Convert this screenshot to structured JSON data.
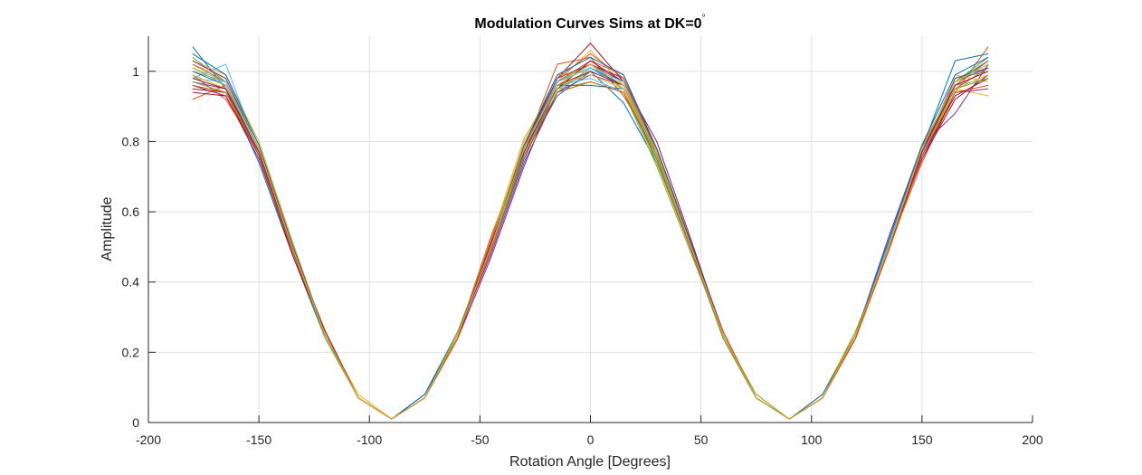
{
  "chart_data": {
    "type": "line",
    "title": "Modulation Curves Sims at DK=0",
    "title_superscript": "°",
    "xlabel": "Rotation Angle [Degrees]",
    "ylabel": "Amplitude",
    "xlim": [
      -200,
      200
    ],
    "ylim": [
      0,
      1.1
    ],
    "xticks": [
      -200,
      -150,
      -100,
      -50,
      0,
      50,
      100,
      150,
      200
    ],
    "yticks": [
      0,
      0.2,
      0.4,
      0.6,
      0.8,
      1
    ],
    "xtick_labels": [
      "-200",
      "-150",
      "-100",
      "-50",
      "0",
      "50",
      "100",
      "150",
      "200"
    ],
    "ytick_labels": [
      "0",
      "0.2",
      "0.4",
      "0.6",
      "0.8",
      "1"
    ],
    "grid": true,
    "x": [
      -180,
      -165,
      -150,
      -135,
      -120,
      -105,
      -90,
      -75,
      -60,
      -45,
      -30,
      -15,
      0,
      15,
      30,
      45,
      60,
      75,
      90,
      105,
      120,
      135,
      150,
      165,
      180
    ],
    "series": [
      {
        "color": "#0072BD",
        "values": [
          1.07,
          0.95,
          0.74,
          0.48,
          0.24,
          0.07,
          0.01,
          0.08,
          0.26,
          0.49,
          0.76,
          0.93,
          1.0,
          0.91,
          0.74,
          0.51,
          0.24,
          0.07,
          0.01,
          0.07,
          0.24,
          0.51,
          0.78,
          1.03,
          1.05
        ]
      },
      {
        "color": "#D95319",
        "values": [
          0.92,
          0.96,
          0.76,
          0.5,
          0.26,
          0.07,
          0.01,
          0.07,
          0.25,
          0.53,
          0.78,
          1.02,
          1.04,
          0.93,
          0.77,
          0.51,
          0.25,
          0.07,
          0.01,
          0.07,
          0.25,
          0.5,
          0.74,
          0.94,
          1.07
        ]
      },
      {
        "color": "#EDB120",
        "values": [
          1.03,
          0.99,
          0.8,
          0.52,
          0.25,
          0.08,
          0.01,
          0.07,
          0.25,
          0.52,
          0.81,
          0.97,
          1.06,
          0.96,
          0.75,
          0.5,
          0.24,
          0.07,
          0.01,
          0.08,
          0.26,
          0.49,
          0.76,
          0.95,
          0.93
        ]
      },
      {
        "color": "#7E2F8E",
        "values": [
          0.96,
          0.93,
          0.75,
          0.49,
          0.25,
          0.07,
          0.01,
          0.07,
          0.24,
          0.47,
          0.73,
          0.96,
          1.02,
          0.98,
          0.78,
          0.52,
          0.26,
          0.07,
          0.01,
          0.07,
          0.25,
          0.53,
          0.79,
          0.88,
          1.02
        ]
      },
      {
        "color": "#77AC30",
        "values": [
          1.0,
          0.97,
          0.78,
          0.5,
          0.25,
          0.07,
          0.01,
          0.07,
          0.26,
          0.5,
          0.77,
          0.95,
          0.97,
          0.94,
          0.73,
          0.49,
          0.25,
          0.08,
          0.01,
          0.07,
          0.25,
          0.51,
          0.77,
          0.98,
          1.0
        ]
      },
      {
        "color": "#4DBEEE",
        "values": [
          0.98,
          1.02,
          0.77,
          0.51,
          0.24,
          0.07,
          0.01,
          0.07,
          0.25,
          0.51,
          0.76,
          0.94,
          1.01,
          0.95,
          0.76,
          0.52,
          0.25,
          0.07,
          0.01,
          0.07,
          0.25,
          0.5,
          0.76,
          0.96,
          0.98
        ]
      },
      {
        "color": "#A2142F",
        "values": [
          0.95,
          0.94,
          0.76,
          0.48,
          0.25,
          0.07,
          0.01,
          0.07,
          0.24,
          0.5,
          0.79,
          0.98,
          1.08,
          0.97,
          0.8,
          0.53,
          0.25,
          0.07,
          0.01,
          0.07,
          0.24,
          0.51,
          0.75,
          0.92,
          0.99
        ]
      },
      {
        "color": "#0072BD",
        "values": [
          1.01,
          0.96,
          0.77,
          0.5,
          0.25,
          0.07,
          0.01,
          0.08,
          0.25,
          0.49,
          0.75,
          0.96,
          0.96,
          0.95,
          0.75,
          0.5,
          0.24,
          0.07,
          0.01,
          0.08,
          0.25,
          0.52,
          0.77,
          0.97,
          1.03
        ]
      },
      {
        "color": "#D95319",
        "values": [
          0.99,
          0.92,
          0.77,
          0.49,
          0.26,
          0.07,
          0.01,
          0.07,
          0.24,
          0.52,
          0.78,
          0.97,
          1.03,
          0.99,
          0.77,
          0.51,
          0.26,
          0.07,
          0.01,
          0.07,
          0.24,
          0.49,
          0.77,
          0.95,
          1.01
        ]
      },
      {
        "color": "#EDB120",
        "values": [
          1.02,
          0.98,
          0.79,
          0.51,
          0.25,
          0.07,
          0.01,
          0.07,
          0.25,
          0.51,
          0.8,
          0.99,
          1.0,
          0.96,
          0.76,
          0.51,
          0.25,
          0.07,
          0.01,
          0.07,
          0.25,
          0.52,
          0.79,
          0.99,
          0.97
        ]
      },
      {
        "color": "#7E2F8E",
        "values": [
          0.97,
          0.95,
          0.76,
          0.5,
          0.25,
          0.07,
          0.01,
          0.07,
          0.25,
          0.48,
          0.74,
          0.94,
          0.99,
          0.96,
          0.77,
          0.52,
          0.25,
          0.07,
          0.01,
          0.07,
          0.25,
          0.51,
          0.75,
          0.94,
          0.95
        ]
      },
      {
        "color": "#77AC30",
        "values": [
          1.04,
          0.97,
          0.78,
          0.5,
          0.24,
          0.07,
          0.01,
          0.07,
          0.26,
          0.51,
          0.77,
          0.97,
          1.02,
          0.95,
          0.74,
          0.5,
          0.24,
          0.07,
          0.01,
          0.07,
          0.26,
          0.5,
          0.78,
          0.97,
          1.04
        ]
      },
      {
        "color": "#4DBEEE",
        "values": [
          0.98,
          0.97,
          0.77,
          0.51,
          0.25,
          0.07,
          0.01,
          0.07,
          0.25,
          0.5,
          0.77,
          0.96,
          0.98,
          0.94,
          0.75,
          0.5,
          0.25,
          0.07,
          0.01,
          0.07,
          0.25,
          0.51,
          0.77,
          0.96,
          1.0
        ]
      },
      {
        "color": "#A2142F",
        "values": [
          0.94,
          0.93,
          0.76,
          0.49,
          0.26,
          0.07,
          0.01,
          0.07,
          0.25,
          0.5,
          0.78,
          0.95,
          1.03,
          0.97,
          0.78,
          0.52,
          0.25,
          0.07,
          0.01,
          0.07,
          0.25,
          0.5,
          0.76,
          0.93,
          0.98
        ]
      },
      {
        "color": "#0072BD",
        "values": [
          1.0,
          0.96,
          0.78,
          0.5,
          0.25,
          0.07,
          0.01,
          0.07,
          0.25,
          0.51,
          0.77,
          0.97,
          1.01,
          0.96,
          0.76,
          0.51,
          0.25,
          0.07,
          0.01,
          0.07,
          0.25,
          0.5,
          0.78,
          0.97,
          1.01
        ]
      },
      {
        "color": "#D95319",
        "values": [
          1.02,
          0.97,
          0.78,
          0.51,
          0.25,
          0.07,
          0.01,
          0.07,
          0.25,
          0.5,
          0.78,
          0.98,
          1.05,
          0.98,
          0.77,
          0.51,
          0.25,
          0.07,
          0.01,
          0.07,
          0.25,
          0.51,
          0.79,
          0.96,
          1.03
        ]
      },
      {
        "color": "#EDB120",
        "values": [
          0.99,
          0.95,
          0.77,
          0.5,
          0.25,
          0.07,
          0.01,
          0.07,
          0.25,
          0.51,
          0.76,
          0.96,
          0.99,
          0.95,
          0.76,
          0.51,
          0.25,
          0.07,
          0.01,
          0.07,
          0.25,
          0.51,
          0.77,
          0.95,
          0.99
        ]
      },
      {
        "color": "#7E2F8E",
        "values": [
          1.03,
          0.98,
          0.78,
          0.5,
          0.25,
          0.07,
          0.01,
          0.07,
          0.25,
          0.5,
          0.78,
          0.98,
          1.02,
          0.97,
          0.77,
          0.51,
          0.25,
          0.07,
          0.01,
          0.07,
          0.25,
          0.5,
          0.77,
          0.98,
          1.01
        ]
      },
      {
        "color": "#77AC30",
        "values": [
          0.97,
          0.94,
          0.77,
          0.5,
          0.25,
          0.07,
          0.01,
          0.07,
          0.25,
          0.5,
          0.77,
          0.95,
          1.0,
          0.96,
          0.76,
          0.51,
          0.25,
          0.07,
          0.01,
          0.07,
          0.25,
          0.51,
          0.77,
          0.95,
          0.98
        ]
      },
      {
        "color": "#4DBEEE",
        "values": [
          1.01,
          0.97,
          0.78,
          0.5,
          0.25,
          0.07,
          0.01,
          0.07,
          0.25,
          0.51,
          0.78,
          0.97,
          1.01,
          0.97,
          0.77,
          0.51,
          0.25,
          0.07,
          0.01,
          0.07,
          0.25,
          0.51,
          0.78,
          0.97,
          1.02
        ]
      },
      {
        "color": "#A2142F",
        "values": [
          0.98,
          0.95,
          0.77,
          0.5,
          0.25,
          0.07,
          0.01,
          0.07,
          0.25,
          0.51,
          0.77,
          0.96,
          1.0,
          0.96,
          0.77,
          0.51,
          0.25,
          0.07,
          0.01,
          0.07,
          0.25,
          0.5,
          0.77,
          0.96,
          1.0
        ]
      },
      {
        "color": "#0072BD",
        "values": [
          1.05,
          0.99,
          0.79,
          0.51,
          0.25,
          0.07,
          0.01,
          0.07,
          0.25,
          0.5,
          0.79,
          0.99,
          1.04,
          0.99,
          0.78,
          0.52,
          0.25,
          0.07,
          0.01,
          0.07,
          0.25,
          0.52,
          0.79,
          0.99,
          1.04
        ]
      },
      {
        "color": "#D95319",
        "values": [
          0.96,
          0.94,
          0.76,
          0.49,
          0.25,
          0.07,
          0.01,
          0.07,
          0.25,
          0.49,
          0.76,
          0.94,
          0.97,
          0.94,
          0.75,
          0.5,
          0.25,
          0.07,
          0.01,
          0.07,
          0.25,
          0.49,
          0.76,
          0.94,
          0.96
        ]
      },
      {
        "color": "#EDB120",
        "values": [
          1.01,
          0.96,
          0.78,
          0.5,
          0.25,
          0.07,
          0.01,
          0.07,
          0.25,
          0.5,
          0.78,
          0.96,
          1.02,
          0.96,
          0.77,
          0.51,
          0.25,
          0.07,
          0.01,
          0.07,
          0.25,
          0.5,
          0.78,
          0.97,
          1.02
        ]
      }
    ]
  }
}
